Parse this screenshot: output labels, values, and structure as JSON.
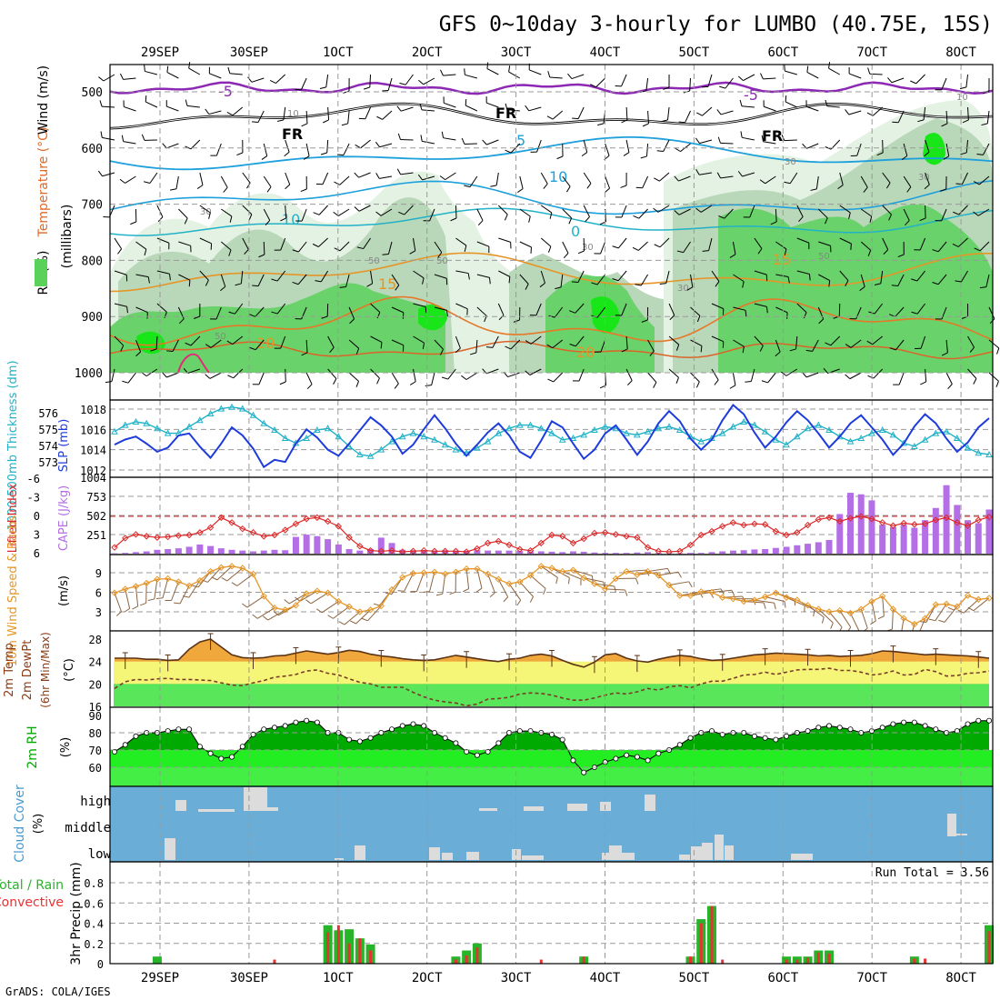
{
  "chart_data": {
    "type": "meteogram",
    "title": "GFS 0~10day 3-hourly for LUMBO (40.75E, 15S)",
    "credit": "GrADS: COLA/IGES",
    "date_ticks_top": [
      "29SEP",
      "30SEP",
      "1OCT",
      "2OCT",
      "3OCT",
      "4OCT",
      "5OCT",
      "6OCT",
      "7OCT",
      "8OCT"
    ],
    "date_ticks_bottom": [
      "29SEP",
      "30SEP",
      "1OCT",
      "2OCT",
      "3OCT",
      "4OCT",
      "5OCT",
      "6OCT",
      "7OCT",
      "8OCT"
    ],
    "colors": {
      "rh_light": "#e4f2e4",
      "rh_mid": "#b9d7b9",
      "rh_dark": "#8dc08d",
      "rh_green": "#6ad26a",
      "rh_bright": "#19e619",
      "slp": "#1e3cdc",
      "thickness": "#22b2c8",
      "cape": "#b46ee6",
      "lifted_index": "#dc2828",
      "wind": "#e69628",
      "barb": "#8c6440",
      "temp_fill": "#f0a83c",
      "temp_band": "#f5f578",
      "dew_band": "#5ae65a",
      "rh_dark_fill": "#00aa00",
      "rh_light_fill": "#22ee22",
      "cloud_bg": "#6aaed8",
      "precip_total": "#28b428",
      "precip_conv": "#e63232"
    },
    "panels": {
      "upper_air": {
        "ylabel_left": [
          "RH (%)",
          "Temperature (°C)",
          "Wind (m/s)"
        ],
        "ylabel_unit": "(millibars)",
        "ylabel_parts": {
          "rh": "RH (%)",
          "temp": "Temperature (°C)",
          "wind": "Wind (m/s)"
        },
        "yticks": [
          "500",
          "600",
          "700",
          "800",
          "900",
          "1000"
        ],
        "levels_mb": [
          500,
          600,
          700,
          800,
          900,
          1000
        ],
        "isotherm_labels": [
          "-5",
          "-5",
          "FR",
          "FR",
          "FR",
          "5",
          "10",
          "10",
          "0",
          "15",
          "15",
          "20",
          "20"
        ],
        "rh_labels": [
          "10",
          "30",
          "30",
          "50",
          "50",
          "50",
          "30",
          "10",
          "30",
          "50",
          "30"
        ]
      },
      "slp": {
        "ylabel_left": "1000-500mb Thickness (dm)",
        "ylabel_right": "SLP (mb)",
        "thick_ticks": [
          "576",
          "575",
          "574",
          "573"
        ],
        "slp_ticks": [
          "1018",
          "1016",
          "1014",
          "1012"
        ],
        "slp_values": [
          1014.5,
          1015.0,
          1015.3,
          1014.6,
          1013.8,
          1014.2,
          1015.4,
          1015.6,
          1014.3,
          1013.2,
          1014.6,
          1016.2,
          1015.4,
          1014.1,
          1012.3,
          1013.0,
          1012.8,
          1014.6,
          1016.0,
          1015.2,
          1014.0,
          1013.4,
          1014.6,
          1015.9,
          1017.2,
          1016.4,
          1015.3,
          1013.6,
          1014.5,
          1016.0,
          1017.4,
          1016.1,
          1014.6,
          1013.4,
          1014.5,
          1015.7,
          1016.6,
          1015.4,
          1013.8,
          1013.2,
          1014.9,
          1016.8,
          1016.2,
          1014.6,
          1013.1,
          1014.0,
          1015.6,
          1016.4,
          1015.0,
          1013.5,
          1014.8,
          1016.6,
          1017.8,
          1016.8,
          1015.1,
          1014.0,
          1015.0,
          1016.9,
          1018.4,
          1017.5,
          1015.7,
          1014.2,
          1015.3,
          1016.7,
          1017.8,
          1016.9,
          1015.6,
          1014.2,
          1015.3,
          1016.6,
          1017.4,
          1016.2,
          1015.0,
          1013.5,
          1014.6,
          1016.3,
          1017.5,
          1016.6,
          1015.1,
          1013.8,
          1014.7,
          1016.2,
          1017.1
        ],
        "thickness_values": [
          574.9,
          575.3,
          575.5,
          575.4,
          575.1,
          574.8,
          574.8,
          575.2,
          575.6,
          576.0,
          576.3,
          576.4,
          576.3,
          575.9,
          575.4,
          575.0,
          574.5,
          574.2,
          574.5,
          575.0,
          575.1,
          574.6,
          574.0,
          573.5,
          573.4,
          573.8,
          574.3,
          574.6,
          574.8,
          574.6,
          574.4,
          574.1,
          573.8,
          573.6,
          573.9,
          574.3,
          574.8,
          575.1,
          575.3,
          575.3,
          575.1,
          574.8,
          574.4,
          574.5,
          574.7,
          575.0,
          575.2,
          575.1,
          574.8,
          574.7,
          574.9,
          575.1,
          575.2,
          575.0,
          574.6,
          574.3,
          574.5,
          574.8,
          575.2,
          575.5,
          575.3,
          574.9,
          574.4,
          574.1,
          574.6,
          575.1,
          575.3,
          575.0,
          574.6,
          574.3,
          574.5,
          574.8,
          575.0,
          574.7,
          574.2,
          574.0,
          574.4,
          574.8,
          574.9,
          574.5,
          573.9,
          573.6,
          573.5
        ]
      },
      "cape": {
        "ylabel_left": "Lifted Index",
        "ylabel_right": "CAPE (J/kg)",
        "li_ticks": [
          "-6",
          "-3",
          "0",
          "3",
          "6"
        ],
        "cape_ticks": [
          "1004",
          "753",
          "502",
          "251"
        ],
        "lifted_index_values": [
          5.0,
          3.5,
          2.9,
          3.2,
          3.4,
          3.3,
          3.1,
          3.0,
          2.6,
          1.8,
          0.2,
          1.0,
          2.0,
          2.6,
          3.2,
          3.0,
          2.2,
          1.2,
          0.4,
          0.2,
          0.8,
          1.6,
          3.4,
          4.8,
          5.5,
          5.6,
          5.5,
          5.7,
          5.6,
          5.5,
          5.6,
          5.6,
          5.6,
          5.7,
          5.2,
          4.3,
          4.0,
          4.6,
          5.3,
          5.5,
          4.3,
          3.0,
          3.2,
          4.3,
          3.6,
          2.7,
          2.6,
          2.9,
          3.2,
          3.4,
          5.0,
          5.6,
          5.7,
          5.6,
          4.6,
          3.0,
          2.4,
          1.6,
          1.0,
          1.4,
          1.2,
          1.3,
          2.4,
          3.0,
          2.6,
          1.4,
          0.5,
          0.2,
          0.8,
          0.3,
          0.0,
          0.4,
          1.0,
          1.5,
          1.1,
          1.3,
          1.2,
          0.6,
          0.2,
          1.0,
          1.5,
          0.6,
          0.1
        ],
        "cape_values": [
          5,
          10,
          20,
          30,
          50,
          60,
          70,
          90,
          120,
          100,
          70,
          50,
          40,
          30,
          40,
          50,
          45,
          220,
          250,
          230,
          190,
          120,
          60,
          40,
          60,
          210,
          140,
          50,
          45,
          40,
          40,
          45,
          40,
          40,
          45,
          40,
          40,
          40,
          35,
          30,
          30,
          25,
          20,
          30,
          25,
          15,
          10,
          10,
          10,
          15,
          20,
          10,
          5,
          5,
          10,
          10,
          20,
          30,
          40,
          45,
          55,
          60,
          75,
          90,
          110,
          130,
          150,
          180,
          520,
          800,
          780,
          700,
          380,
          350,
          380,
          340,
          440,
          600,
          900,
          640,
          440,
          400,
          580
        ]
      },
      "wind": {
        "ylabel_left": "10m Wind Speed & Barbs",
        "ylabel_right": "(m/s)",
        "yticks": [
          "9",
          "6",
          "3"
        ],
        "speed_values": [
          5.9,
          6.5,
          6.9,
          7.4,
          8.0,
          8.1,
          7.6,
          7.0,
          7.8,
          9.2,
          9.8,
          10.0,
          9.7,
          8.8,
          5.4,
          3.6,
          3.3,
          4.0,
          5.8,
          6.2,
          5.9,
          4.6,
          3.8,
          3.0,
          3.3,
          3.9,
          6.4,
          8.3,
          8.9,
          9.0,
          9.1,
          8.8,
          9.1,
          9.6,
          9.6,
          8.8,
          8.0,
          7.3,
          7.6,
          8.6,
          10.0,
          9.7,
          9.2,
          9.4,
          8.2,
          7.3,
          6.5,
          8.1,
          9.2,
          8.7,
          9.2,
          8.6,
          7.1,
          5.5,
          5.5,
          6.1,
          6.0,
          5.2,
          5.0,
          4.6,
          4.8,
          5.3,
          5.9,
          5.2,
          4.8,
          4.0,
          3.4,
          3.0,
          3.2,
          2.8,
          3.4,
          4.6,
          5.4,
          3.4,
          2.0,
          1.1,
          2.0,
          4.1,
          4.2,
          3.8,
          5.5,
          4.9,
          5.1
        ]
      },
      "temp": {
        "ylabel_left": [
          "2m Temp",
          "2m DewPt",
          "(6hr Min/Max)"
        ],
        "ylabel_right": "(°C)",
        "yticks": [
          "28",
          "24",
          "20",
          "16"
        ],
        "temp_values": [
          24.6,
          24.6,
          24.6,
          24.4,
          24.4,
          24.2,
          24.3,
          26.2,
          27.5,
          28.0,
          26.6,
          25.2,
          24.7,
          24.6,
          24.7,
          25.0,
          25.1,
          25.5,
          25.9,
          25.6,
          25.3,
          25.6,
          26.0,
          25.8,
          25.3,
          25.0,
          24.8,
          24.5,
          24.3,
          24.2,
          24.3,
          24.7,
          25.1,
          24.8,
          24.5,
          24.2,
          24.0,
          24.4,
          24.6,
          25.1,
          25.3,
          25.0,
          24.2,
          23.5,
          23.0,
          23.9,
          25.2,
          25.4,
          24.6,
          24.1,
          23.9,
          24.4,
          24.8,
          25.1,
          24.9,
          24.5,
          24.2,
          24.3,
          24.6,
          24.9,
          25.2,
          25.3,
          25.5,
          25.4,
          25.3,
          25.2,
          25.0,
          25.1,
          24.9,
          25.0,
          25.1,
          25.4,
          25.9,
          25.8,
          25.6,
          25.4,
          25.2,
          25.3,
          25.2,
          25.1,
          25.0,
          24.8,
          24.6
        ],
        "dewpoint_values": [
          19.2,
          20.4,
          20.8,
          20.7,
          20.9,
          21.0,
          20.8,
          20.8,
          20.7,
          20.6,
          20.2,
          19.8,
          19.7,
          20.2,
          20.6,
          21.2,
          21.4,
          21.7,
          22.3,
          22.5,
          21.9,
          21.6,
          20.9,
          20.3,
          20.0,
          19.4,
          19.4,
          19.4,
          18.5,
          17.7,
          17.1,
          16.8,
          16.6,
          16.1,
          16.4,
          17.3,
          17.4,
          17.6,
          18.2,
          18.4,
          18.3,
          18.0,
          17.5,
          17.1,
          17.1,
          17.5,
          18.0,
          18.4,
          18.2,
          18.6,
          19.2,
          18.9,
          19.5,
          19.7,
          19.3,
          20.0,
          20.5,
          20.5,
          21.0,
          21.6,
          21.7,
          22.1,
          21.7,
          22.1,
          22.5,
          22.6,
          22.6,
          22.8,
          22.4,
          22.4,
          22.1,
          21.6,
          21.8,
          22.3,
          21.6,
          21.7,
          22.6,
          22.2,
          21.4,
          21.5,
          21.9,
          22.0,
          22.3
        ]
      },
      "rh2m": {
        "ylabel_left": "2m RH",
        "ylabel_right": "(%)",
        "yticks": [
          "90",
          "80",
          "70",
          "60"
        ],
        "rh_values": [
          69,
          73,
          78,
          80,
          80,
          81,
          82,
          82,
          72,
          68,
          65,
          66,
          72,
          79,
          82,
          83,
          84,
          86,
          87,
          86,
          80,
          80,
          76,
          75,
          77,
          80,
          82,
          84,
          85,
          84,
          80,
          77,
          74,
          69,
          67,
          69,
          74,
          80,
          81,
          81,
          80,
          79,
          76,
          64,
          57,
          60,
          63,
          65,
          67,
          66,
          64,
          68,
          70,
          73,
          77,
          80,
          81,
          79,
          80,
          80,
          78,
          77,
          76,
          78,
          80,
          81,
          83,
          84,
          83,
          82,
          80,
          81,
          83,
          85,
          86,
          86,
          84,
          82,
          80,
          81,
          85,
          87,
          87
        ]
      },
      "cloud": {
        "ylabel_left": "Cloud Cover",
        "ylabel_unit": "(%)",
        "levels": [
          "high",
          "middle",
          "low"
        ]
      },
      "precip": {
        "ylabel_left": "Total / Rain",
        "ylabel_left2": "Convective",
        "ylabel_right": "3hr Precip (mm)",
        "yticks": [
          "0.8",
          "0.6",
          "0.4",
          "0.2",
          "0"
        ],
        "run_total_label": "Run Total = 3.56",
        "total_values": [
          0,
          0,
          0,
          0,
          0.07,
          0,
          0,
          0,
          0,
          0,
          0,
          0,
          0,
          0,
          0,
          0,
          0,
          0,
          0,
          0,
          0.38,
          0.33,
          0.34,
          0.25,
          0.19,
          0,
          0,
          0,
          0,
          0,
          0,
          0,
          0.07,
          0.13,
          0.2,
          0,
          0,
          0,
          0,
          0,
          0,
          0,
          0,
          0,
          0.07,
          0,
          0,
          0,
          0,
          0,
          0,
          0,
          0,
          0,
          0.07,
          0.44,
          0.57,
          0,
          0,
          0,
          0,
          0,
          0,
          0.07,
          0.07,
          0.07,
          0.13,
          0.13,
          0,
          0,
          0,
          0,
          0,
          0,
          0,
          0.07,
          0,
          0,
          0,
          0,
          0,
          0,
          0.38
        ],
        "convective_values": [
          0,
          0,
          0,
          0,
          0,
          0,
          0,
          0,
          0,
          0,
          0,
          0,
          0,
          0,
          0,
          0.04,
          0,
          0,
          0,
          0,
          0.31,
          0.38,
          0.2,
          0.25,
          0.13,
          0,
          0,
          0,
          0,
          0,
          0,
          0,
          0.04,
          0.08,
          0.16,
          0,
          0,
          0,
          0,
          0,
          0.04,
          0,
          0,
          0,
          0.07,
          0,
          0,
          0,
          0,
          0,
          0,
          0,
          0,
          0,
          0.07,
          0.4,
          0.57,
          0.04,
          0,
          0,
          0,
          0,
          0,
          0.04,
          0.04,
          0.06,
          0.11,
          0.1,
          0,
          0,
          0,
          0,
          0,
          0,
          0,
          0.05,
          0.05,
          0,
          0,
          0,
          0,
          0,
          0.32
        ]
      }
    }
  }
}
